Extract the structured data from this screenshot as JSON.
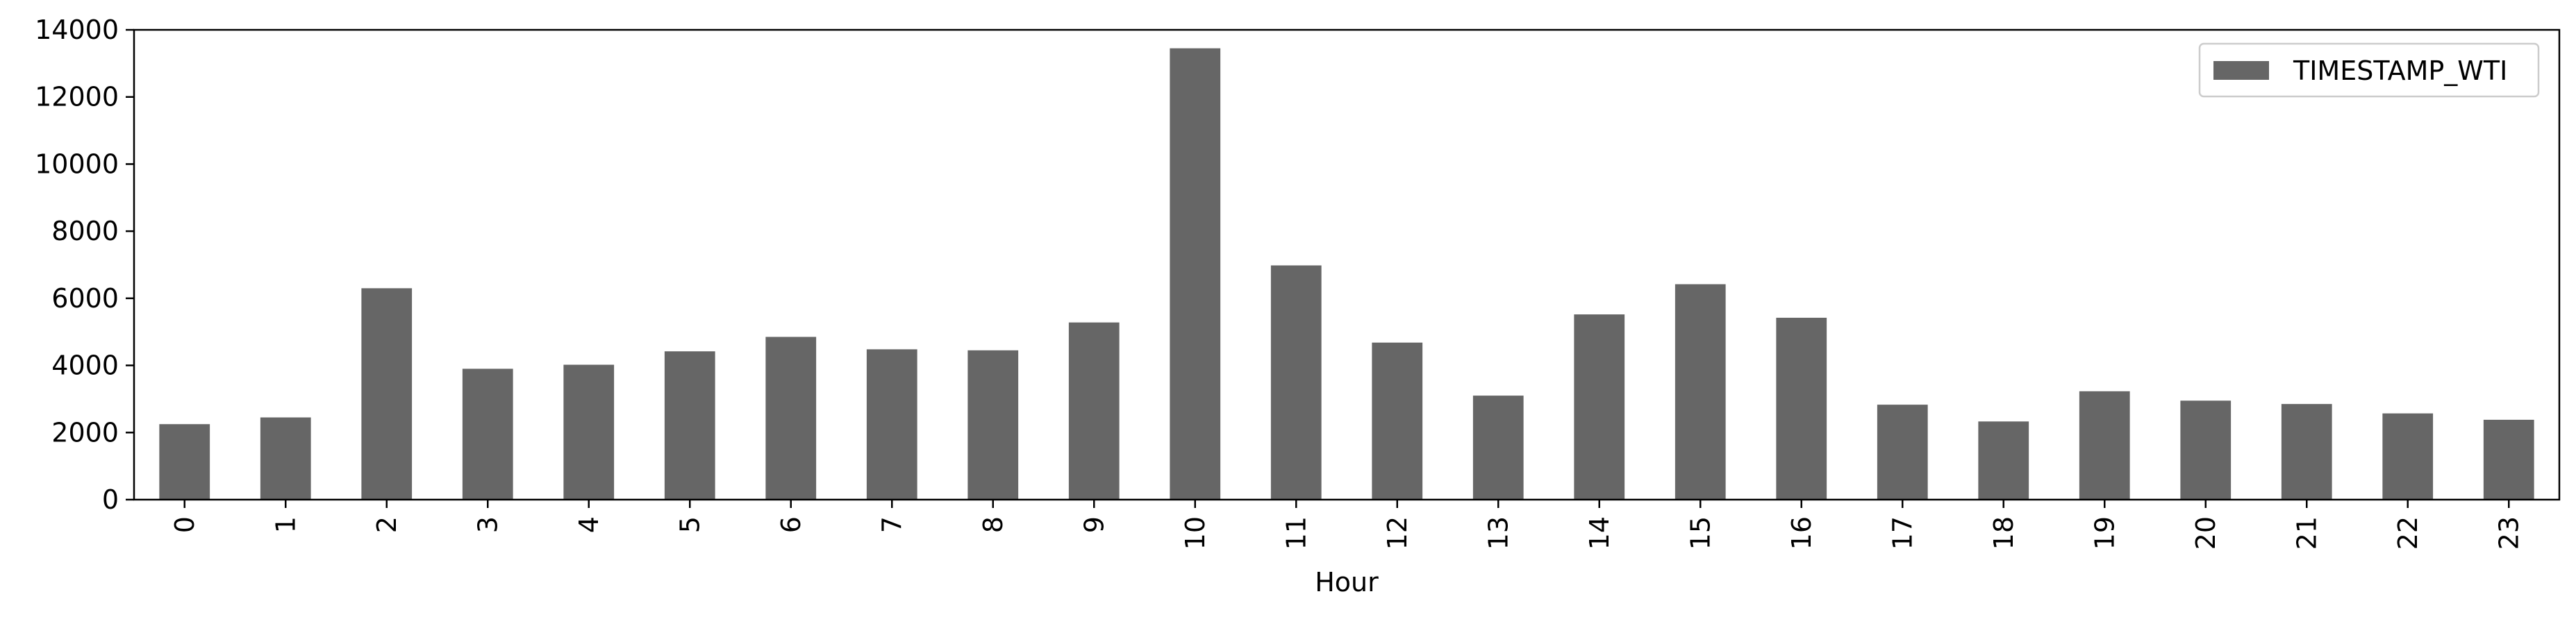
{
  "chart_data": {
    "type": "bar",
    "title": "",
    "xlabel": "Hour",
    "ylabel": "",
    "categories": [
      "0",
      "1",
      "2",
      "3",
      "4",
      "5",
      "6",
      "7",
      "8",
      "9",
      "10",
      "11",
      "12",
      "13",
      "14",
      "15",
      "16",
      "17",
      "18",
      "19",
      "20",
      "21",
      "22",
      "23"
    ],
    "series": [
      {
        "name": "TIMESTAMP_WTI",
        "color": "#666666",
        "values": [
          2250,
          2450,
          6300,
          3900,
          4020,
          4420,
          4850,
          4480,
          4450,
          5280,
          13450,
          6980,
          4680,
          3100,
          5520,
          6420,
          5420,
          2830,
          2330,
          3230,
          2950,
          2850,
          2570,
          2380
        ]
      }
    ],
    "ylim": [
      0,
      14000
    ],
    "yticks": [
      0,
      2000,
      4000,
      6000,
      8000,
      10000,
      12000,
      14000
    ],
    "grid": false,
    "legend_position": "top-right",
    "xtick_rotation": "vertical"
  }
}
